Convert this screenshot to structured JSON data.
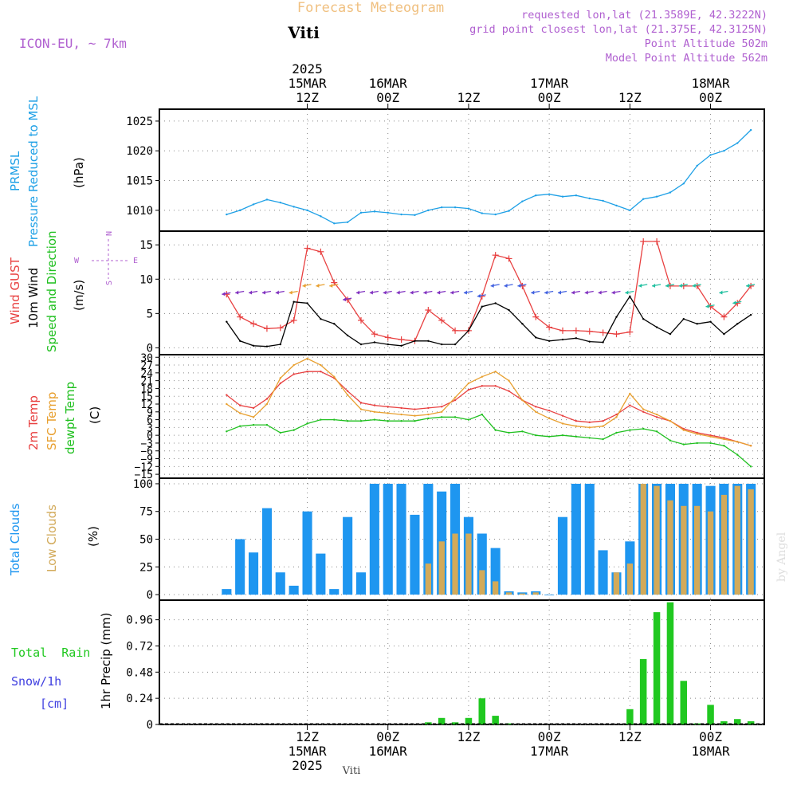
{
  "header": {
    "top_title": "Forecast Meteogram",
    "location": "Viti",
    "model": "ICON-EU, ~ 7km",
    "info_lines": [
      "requested lon,lat (21.3589E, 42.3222N)",
      "grid point closest lon,lat (21.375E, 42.3125N)",
      "Point Altitude 502m",
      "Model Point Altitude 562m"
    ],
    "watermark": "by Angel",
    "footer_location": "Viti"
  },
  "time_axis": {
    "year": "2025",
    "ticks": [
      {
        "hour": "12Z",
        "date": "15MAR",
        "year": "2025"
      },
      {
        "hour": "00Z",
        "date": "16MAR",
        "year": ""
      },
      {
        "hour": "12Z",
        "date": "",
        "year": ""
      },
      {
        "hour": "00Z",
        "date": "17MAR",
        "year": ""
      },
      {
        "hour": "12Z",
        "date": "",
        "year": ""
      },
      {
        "hour": "00Z",
        "date": "18MAR",
        "year": ""
      }
    ]
  },
  "panel_labels": {
    "pressure": {
      "lines": [
        "PRMSL",
        "Pressure Reduced to MSL"
      ],
      "unit": "(hPa)"
    },
    "wind": {
      "gust": "Wind GUST",
      "wind10m": "10m Wind",
      "speed_dir": "Speed and Direction",
      "unit": "(m/s)",
      "compass": {
        "n": "N",
        "s": "S",
        "w": "W",
        "e": "E"
      }
    },
    "temp": {
      "t2m": "2m Temp",
      "sfc": "SFC Temp",
      "dewpt": "dewpt Temp",
      "unit": "(C)"
    },
    "clouds": {
      "total": "Total Clouds",
      "low": "Low Clouds",
      "unit": "(%)"
    },
    "precip": {
      "rain": "Total  Rain",
      "snow": "Snow/1h",
      "snow_unit": "[cm]",
      "axis": "1hr Precip (mm)"
    }
  },
  "colors": {
    "pressure": "#1ea0e6",
    "gust": "#e84040",
    "wind": "#000000",
    "t2m": "#e84040",
    "sfc": "#e8a030",
    "dewpt": "#20c020",
    "total_clouds": "#1e96f0",
    "low_clouds": "#d2aa5a",
    "rain": "#20c820",
    "snow": "#4040e0",
    "label_purple": "#b060d0",
    "title_orange": "#f0c080"
  },
  "chart_data": [
    {
      "type": "line",
      "title": "PRMSL Pressure Reduced to MSL",
      "ylabel": "(hPa)",
      "ylim": [
        1006.5,
        1027
      ],
      "yticks": [
        1010,
        1015,
        1020,
        1025
      ],
      "x_hours": [
        0,
        2,
        4,
        6,
        8,
        10,
        12,
        14,
        16,
        18,
        20,
        22,
        24,
        26,
        28,
        30,
        32,
        34,
        36,
        38,
        40,
        42,
        44,
        46,
        48,
        50,
        52,
        54,
        56,
        58,
        60,
        62,
        64,
        66,
        68,
        70,
        72,
        74,
        76,
        78
      ],
      "series": [
        {
          "name": "PRMSL",
          "values": [
            1009.3,
            1010.0,
            1011.0,
            1011.8,
            1011.3,
            1010.6,
            1010.0,
            1009.0,
            1007.8,
            1008.0,
            1009.6,
            1009.8,
            1009.6,
            1009.3,
            1009.2,
            1010.0,
            1010.5,
            1010.5,
            1010.3,
            1009.5,
            1009.3,
            1009.9,
            1011.5,
            1012.5,
            1012.7,
            1012.3,
            1012.5,
            1012.0,
            1011.6,
            1010.8,
            1010.0,
            1011.9,
            1012.3,
            1013.0,
            1014.5,
            1017.5,
            1019.3,
            1020.0,
            1021.3,
            1023.5
          ]
        }
      ]
    },
    {
      "type": "line",
      "title": "Wind GUST / 10m Wind",
      "ylabel": "(m/s)",
      "ylim": [
        -1,
        17
      ],
      "yticks": [
        0,
        5,
        10,
        15
      ],
      "x_hours": [
        0,
        2,
        4,
        6,
        8,
        10,
        12,
        14,
        16,
        18,
        20,
        22,
        24,
        26,
        28,
        30,
        32,
        34,
        36,
        38,
        40,
        42,
        44,
        46,
        48,
        50,
        52,
        54,
        56,
        58,
        60,
        62,
        64,
        66,
        68,
        70,
        72,
        74,
        76,
        78
      ],
      "series": [
        {
          "name": "Wind GUST",
          "values": [
            7.8,
            4.5,
            3.5,
            2.8,
            2.9,
            4.0,
            14.5,
            14.0,
            9.5,
            7.0,
            4.0,
            2.0,
            1.5,
            1.2,
            1.0,
            5.5,
            4.0,
            2.5,
            2.5,
            7.5,
            13.5,
            13.0,
            9.0,
            4.5,
            3.0,
            2.5,
            2.5,
            2.4,
            2.2,
            2.0,
            2.3,
            15.5,
            15.5,
            9.0,
            9.0,
            9.0,
            6.0,
            4.5,
            6.5,
            9.0
          ]
        },
        {
          "name": "10m Wind",
          "values": [
            3.8,
            1.0,
            0.3,
            0.2,
            0.5,
            6.7,
            6.5,
            4.2,
            3.5,
            1.8,
            0.5,
            0.8,
            0.5,
            0.3,
            1.0,
            1.0,
            0.5,
            0.5,
            2.5,
            6.0,
            6.5,
            5.5,
            3.5,
            1.5,
            1.0,
            1.2,
            1.4,
            0.9,
            0.8,
            4.5,
            7.5,
            4.2,
            3.0,
            2.0,
            4.2,
            3.5,
            3.8,
            2.0,
            3.5,
            4.8
          ]
        }
      ]
    },
    {
      "type": "line",
      "title": "2m Temp / SFC Temp / dewpt Temp",
      "ylabel": "(C)",
      "ylim": [
        -16.5,
        31
      ],
      "yticks": [
        -15,
        -12,
        -9,
        -6,
        -3,
        0,
        3,
        6,
        9,
        12,
        15,
        18,
        21,
        24,
        27,
        30
      ],
      "x_hours": [
        0,
        2,
        4,
        6,
        8,
        10,
        12,
        14,
        16,
        18,
        20,
        22,
        24,
        26,
        28,
        30,
        32,
        34,
        36,
        38,
        40,
        42,
        44,
        46,
        48,
        50,
        52,
        54,
        56,
        58,
        60,
        62,
        64,
        66,
        68,
        70,
        72,
        74,
        76,
        78
      ],
      "series": [
        {
          "name": "2m Temp",
          "values": [
            15.5,
            11.5,
            10.5,
            14.0,
            20.0,
            23.5,
            24.5,
            24.5,
            22.0,
            17.0,
            12.5,
            11.5,
            11.0,
            10.5,
            10.0,
            10.5,
            11.0,
            13.5,
            17.5,
            19.0,
            19.0,
            17.0,
            13.5,
            11.0,
            9.5,
            7.5,
            5.5,
            5.0,
            5.5,
            8.0,
            11.5,
            9.0,
            7.0,
            5.5,
            2.5,
            1.0,
            0.0,
            -1.0,
            -2.5,
            -4.0
          ]
        },
        {
          "name": "SFC Temp",
          "values": [
            12.0,
            8.5,
            7.0,
            12.0,
            22.0,
            27.0,
            29.5,
            27.0,
            22.5,
            15.5,
            10.0,
            9.0,
            8.5,
            8.0,
            7.5,
            8.0,
            9.0,
            14.5,
            20.0,
            22.5,
            24.5,
            21.0,
            13.5,
            9.0,
            6.5,
            4.5,
            3.5,
            3.0,
            3.5,
            7.0,
            16.0,
            10.0,
            8.0,
            5.5,
            2.0,
            0.5,
            -0.5,
            -1.5,
            -2.5,
            -4.0
          ]
        },
        {
          "name": "dewpt Temp",
          "values": [
            1.5,
            3.5,
            4.0,
            4.0,
            1.0,
            2.0,
            4.5,
            6.0,
            6.0,
            5.5,
            5.5,
            6.0,
            5.5,
            5.5,
            5.5,
            6.5,
            7.0,
            7.0,
            6.0,
            8.0,
            2.0,
            1.0,
            1.5,
            0.0,
            -0.5,
            0.0,
            -0.5,
            -1.0,
            -1.5,
            1.0,
            2.0,
            2.5,
            1.5,
            -2.0,
            -3.5,
            -3.0,
            -3.0,
            -4.0,
            -7.5,
            -12.0
          ]
        }
      ]
    },
    {
      "type": "bar",
      "title": "Total Clouds / Low Clouds",
      "ylabel": "(%)",
      "ylim": [
        -5,
        105
      ],
      "yticks": [
        0,
        25,
        50,
        75,
        100
      ],
      "x_hours": [
        0,
        2,
        4,
        6,
        8,
        10,
        12,
        14,
        16,
        18,
        20,
        22,
        24,
        26,
        28,
        30,
        32,
        34,
        36,
        38,
        40,
        42,
        44,
        46,
        48,
        50,
        52,
        54,
        56,
        58,
        60,
        62,
        64,
        66,
        68,
        70,
        72,
        74,
        76,
        78
      ],
      "series": [
        {
          "name": "Total Clouds",
          "values": [
            5,
            50,
            38,
            78,
            20,
            8,
            75,
            37,
            5,
            70,
            20,
            100,
            100,
            100,
            72,
            100,
            93,
            100,
            70,
            55,
            42,
            3,
            2,
            3,
            0,
            70,
            100,
            100,
            40,
            20,
            48,
            100,
            100,
            100,
            100,
            100,
            98,
            100,
            100,
            100
          ]
        },
        {
          "name": "Low Clouds",
          "values": [
            0,
            0,
            0,
            0,
            0,
            0,
            0,
            0,
            0,
            0,
            0,
            0,
            0,
            0,
            0,
            28,
            48,
            55,
            55,
            22,
            12,
            2,
            1,
            2,
            0,
            0,
            0,
            0,
            0,
            20,
            28,
            100,
            98,
            85,
            80,
            80,
            75,
            90,
            98,
            95
          ]
        }
      ]
    },
    {
      "type": "bar",
      "title": "1hr Precip (mm)",
      "ylabel": "1hr Precip (mm)",
      "ylim": [
        0,
        1.14
      ],
      "yticks": [
        0,
        0.24,
        0.48,
        0.72,
        0.96
      ],
      "x_hours": [
        0,
        2,
        4,
        6,
        8,
        10,
        12,
        14,
        16,
        18,
        20,
        22,
        24,
        26,
        28,
        30,
        32,
        34,
        36,
        38,
        40,
        42,
        44,
        46,
        48,
        50,
        52,
        54,
        56,
        58,
        60,
        62,
        64,
        66,
        68,
        70,
        72,
        74,
        76,
        78
      ],
      "series": [
        {
          "name": "Total Rain",
          "values": [
            0,
            0,
            0,
            0,
            0,
            0,
            0,
            0,
            0,
            0,
            0,
            0,
            0,
            0,
            0,
            0.02,
            0.06,
            0.02,
            0.06,
            0.24,
            0.08,
            0.01,
            0,
            0,
            0,
            0,
            0,
            0,
            0,
            0,
            0.14,
            0.6,
            1.03,
            1.12,
            0.4,
            0.01,
            0.18,
            0.03,
            0.05,
            0.03
          ]
        }
      ]
    }
  ]
}
